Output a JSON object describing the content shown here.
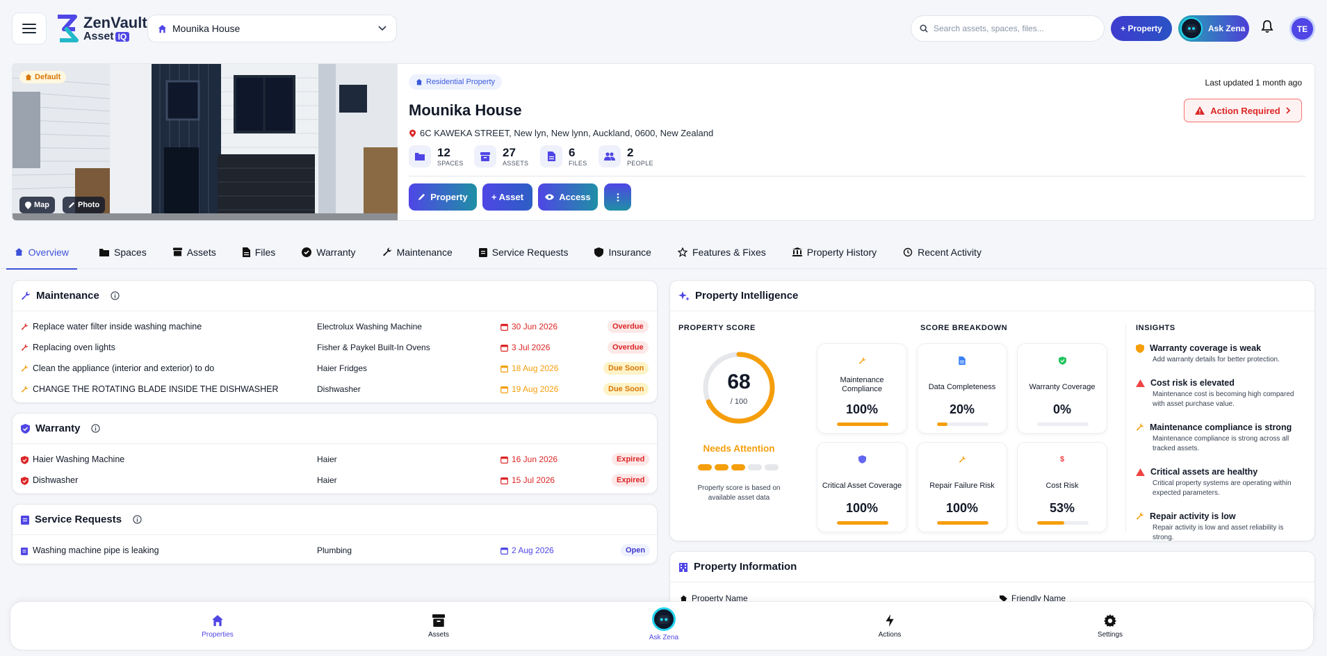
{
  "header": {
    "logo_line1": "ZenVault",
    "logo_line2": "Asset",
    "logo_iq": "IQ",
    "property_select": "Mounika House",
    "search_placeholder": "Search assets, spaces, files...",
    "add_property": "+ Property",
    "ask_zena": "Ask Zena",
    "user_initials": "TE"
  },
  "hero": {
    "default_badge": "Default",
    "map_btn": "Map",
    "photo_btn": "Photo",
    "type_pill": "Residential Property",
    "title": "Mounika House",
    "address": "6C KAWEKA STREET, New lyn, New lynn, Auckland, 0600, New Zealand",
    "stats": [
      {
        "num": "12",
        "label": "SPACES",
        "icon": "folder-icon"
      },
      {
        "num": "27",
        "label": "ASSETS",
        "icon": "archive-icon"
      },
      {
        "num": "6",
        "label": "FILES",
        "icon": "file-icon"
      },
      {
        "num": "2",
        "label": "PEOPLE",
        "icon": "people-icon"
      }
    ],
    "btn_property": "Property",
    "btn_asset": "+ Asset",
    "btn_access": "Access",
    "updated": "Last updated 1 month ago",
    "action_required": "Action Required"
  },
  "tabs": [
    "Overview",
    "Spaces",
    "Assets",
    "Files",
    "Warranty",
    "Maintenance",
    "Service Requests",
    "Insurance",
    "Features & Fixes",
    "Property History",
    "Recent Activity"
  ],
  "maintenance": {
    "title": "Maintenance",
    "rows": [
      {
        "task": "Replace water filter inside washing machine",
        "asset": "Electrolux Washing Machine",
        "date": "30 Jun 2026",
        "status": "Overdue"
      },
      {
        "task": "Replacing oven lights",
        "asset": "Fisher & Paykel Built-In Ovens",
        "date": "3 Jul 2026",
        "status": "Overdue"
      },
      {
        "task": "Clean the appliance (interior and exterior) to do",
        "asset": "Haier Fridges",
        "date": "18 Aug 2026",
        "status": "Due Soon"
      },
      {
        "task": "CHANGE THE ROTATING BLADE INSIDE THE DISHWASHER",
        "asset": "Dishwasher",
        "date": "19 Aug 2026",
        "status": "Due Soon"
      }
    ]
  },
  "warranty": {
    "title": "Warranty",
    "rows": [
      {
        "item": "Haier Washing Machine",
        "brand": "Haier",
        "date": "16 Jun 2026",
        "status": "Expired"
      },
      {
        "item": "Dishwasher",
        "brand": "Haier",
        "date": "15 Jul 2026",
        "status": "Expired"
      }
    ]
  },
  "service_requests": {
    "title": "Service Requests",
    "rows": [
      {
        "item": "Washing machine pipe is leaking",
        "category": "Plumbing",
        "date": "2 Aug 2026",
        "status": "Open"
      }
    ]
  },
  "intelligence": {
    "title": "Property Intelligence",
    "score_label": "PROPERTY SCORE",
    "score": "68",
    "score_max": "/ 100",
    "score_fraction": 0.68,
    "score_status": "Needs Attention",
    "score_note": "Property score is based on available asset data",
    "breakdown_label": "SCORE BREAKDOWN",
    "insights_label": "INSIGHTS",
    "metrics": [
      {
        "label": "Maintenance Compliance",
        "value": "100%",
        "fill": 1.0,
        "icon": "wrench-icon"
      },
      {
        "label": "Data Completeness",
        "value": "20%",
        "fill": 0.2,
        "icon": "document-icon"
      },
      {
        "label": "Warranty Coverage",
        "value": "0%",
        "fill": 0.0,
        "icon": "shield-check-icon"
      },
      {
        "label": "Critical Asset Coverage",
        "value": "100%",
        "fill": 1.0,
        "icon": "shield-icon"
      },
      {
        "label": "Repair Failure Risk",
        "value": "100%",
        "fill": 1.0,
        "icon": "wrench-icon"
      },
      {
        "label": "Cost Risk",
        "value": "53%",
        "fill": 0.53,
        "icon": "dollar-icon"
      }
    ],
    "insights": [
      {
        "title": "Warranty coverage is weak",
        "desc": "Add warranty details for better protection.",
        "icon": "shield-icon"
      },
      {
        "title": "Cost risk is elevated",
        "desc": "Maintenance cost is becoming high compared with asset purchase value.",
        "icon": "warning-icon"
      },
      {
        "title": "Maintenance compliance is strong",
        "desc": "Maintenance compliance is strong across all tracked assets.",
        "icon": "wrench-icon"
      },
      {
        "title": "Critical assets are healthy",
        "desc": "Critical property systems are operating within expected parameters.",
        "icon": "warning-icon"
      },
      {
        "title": "Repair activity is low",
        "desc": "Repair activity is low and asset reliability is strong.",
        "icon": "wrench-icon"
      }
    ]
  },
  "property_info": {
    "title": "Property Information",
    "field1": "Property Name",
    "field2": "Friendly Name"
  },
  "bottom_nav": [
    "Properties",
    "Assets",
    "Ask Zena",
    "Actions",
    "Settings"
  ],
  "colors": {
    "accent": "#4f46e5",
    "danger": "#dc2626",
    "warning": "#f59e0b"
  }
}
